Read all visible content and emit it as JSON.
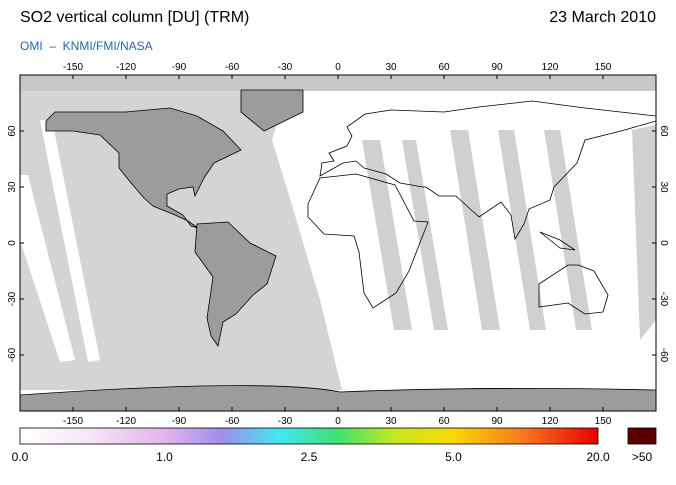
{
  "header": {
    "title": "SO2 vertical column [DU] (TRM)",
    "date": "23 March 2010",
    "source": "OMI  –  KNMI/FMI/NASA"
  },
  "map": {
    "lon_ticks": [
      -150,
      -120,
      -90,
      -60,
      -30,
      0,
      30,
      60,
      90,
      120,
      150
    ],
    "lat_ticks": [
      60,
      30,
      0,
      -30,
      -60
    ]
  },
  "colorbar": {
    "labels": [
      "0.0",
      "1.0",
      "2.5",
      "5.0",
      "20.0"
    ],
    "overflow_label": ">50"
  }
}
